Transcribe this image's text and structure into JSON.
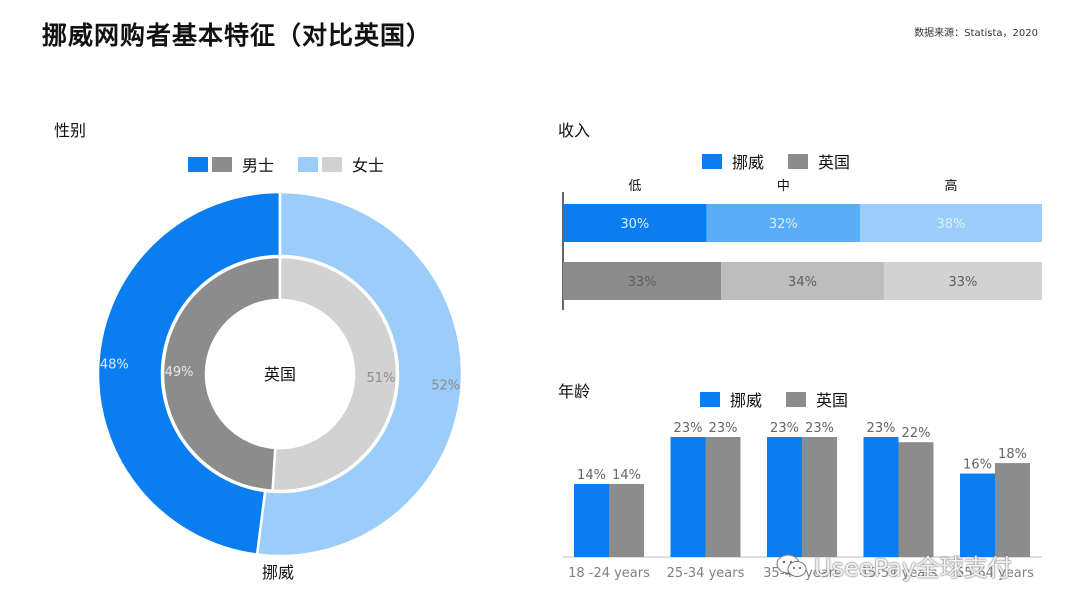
{
  "title": "挪威网购者基本特征（对比英国）",
  "source": "数据来源：Statista，2020",
  "colors": {
    "norway": "#0a7ef0",
    "uk": "#8c8c8c",
    "norway_light": "#9ccdfa",
    "uk_light": "#d2d2d2",
    "norway_mid": "#5aaef6",
    "uk_mid": "#bdbdbd"
  },
  "gender": {
    "label": "性别",
    "legend": {
      "male": "男士",
      "female": "女士"
    },
    "outer_label": "挪威",
    "inner_label": "英国"
  },
  "income": {
    "label": "收入",
    "legend": {
      "norway": "挪威",
      "uk": "英国"
    },
    "levels": [
      "低",
      "中",
      "高"
    ]
  },
  "age": {
    "label": "年龄",
    "legend": {
      "norway": "挪威",
      "uk": "英国"
    }
  },
  "watermark": "UseePay全球支付",
  "chart_data": [
    {
      "type": "pie",
      "title": "性别",
      "categories": [
        "男士",
        "女士"
      ],
      "series": [
        {
          "name": "挪威",
          "values": [
            48,
            52
          ]
        },
        {
          "name": "英国",
          "values": [
            49,
            51
          ]
        }
      ]
    },
    {
      "type": "bar",
      "title": "收入",
      "stacked": true,
      "orientation": "horizontal",
      "categories": [
        "低",
        "中",
        "高"
      ],
      "series": [
        {
          "name": "挪威",
          "values": [
            30,
            32,
            38
          ]
        },
        {
          "name": "英国",
          "values": [
            33,
            34,
            33
          ]
        }
      ],
      "legend": "top"
    },
    {
      "type": "bar",
      "title": "年龄",
      "categories": [
        "18 -24 years",
        "25-34 years",
        "35-44 years",
        "45-54 years",
        "55-64 years"
      ],
      "series": [
        {
          "name": "挪威",
          "values": [
            14,
            23,
            23,
            23,
            16
          ]
        },
        {
          "name": "英国",
          "values": [
            14,
            23,
            23,
            22,
            18
          ]
        }
      ],
      "ylim": [
        0,
        25
      ],
      "legend": "top",
      "grid": false
    }
  ]
}
